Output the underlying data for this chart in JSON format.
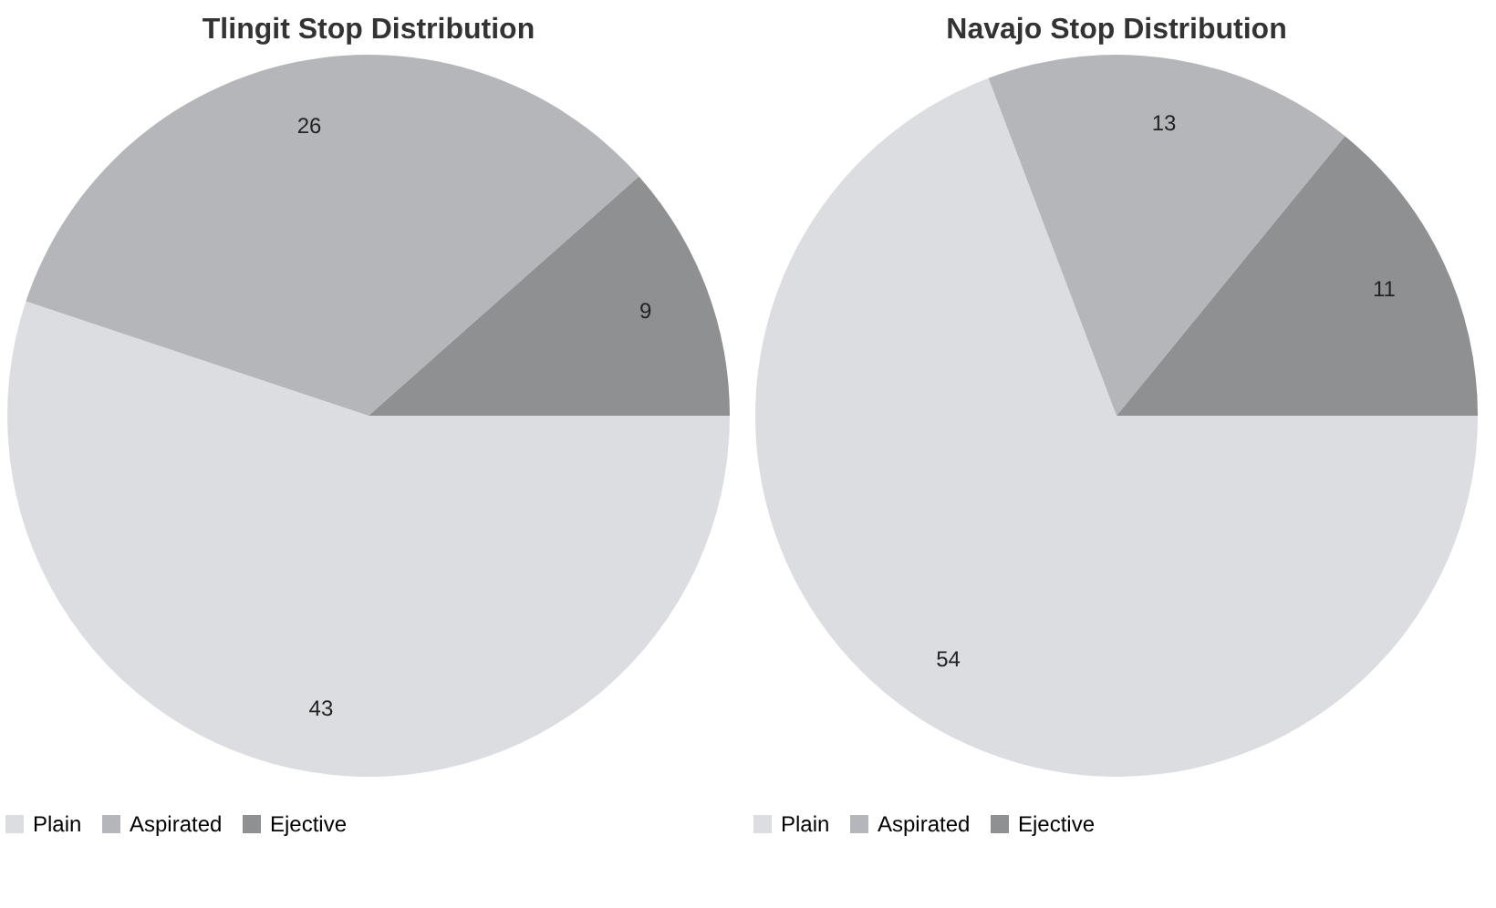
{
  "chart_data": [
    {
      "type": "pie",
      "title": "Tlingit Stop Distribution",
      "categories": [
        "Plain",
        "Aspirated",
        "Ejective"
      ],
      "values": [
        43,
        26,
        9
      ],
      "colors": [
        "#dcdde1",
        "#b5b6b9",
        "#8f9092"
      ],
      "data_labels": true,
      "legend": "bottom"
    },
    {
      "type": "pie",
      "title": "Navajo Stop Distribution",
      "categories": [
        "Plain",
        "Aspirated",
        "Ejective"
      ],
      "values": [
        54,
        13,
        11
      ],
      "colors": [
        "#dcdde1",
        "#b5b6b9",
        "#8f9092"
      ],
      "data_labels": true,
      "legend": "bottom"
    }
  ]
}
